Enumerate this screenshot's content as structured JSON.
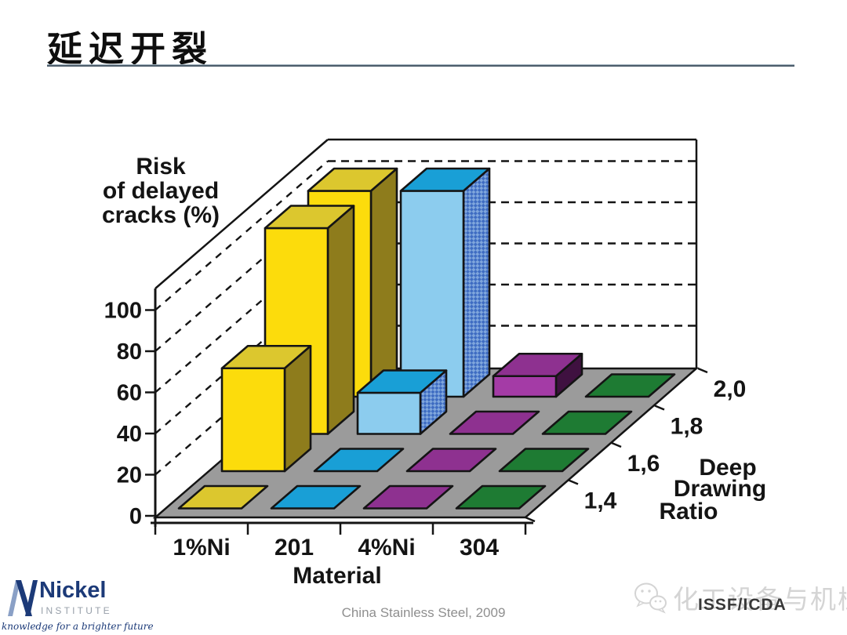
{
  "slide": {
    "title": "延迟开裂",
    "accent_line_color": "#4d5d6b",
    "footer_credit": "China Stainless Steel, 2009",
    "footer_org": "ISSF/ICDA",
    "watermark": "化工设备与机械"
  },
  "logo": {
    "name": "Nickel",
    "subname": "INSTITUTE",
    "tagline": "knowledge for a brighter future",
    "navy": "#1c3a78"
  },
  "chart_data": {
    "type": "bar",
    "projection": "3d-oblique",
    "title_lines": [
      "Risk",
      "of delayed",
      "cracks (%)"
    ],
    "x_axis": {
      "label": "Material",
      "categories": [
        "1%Ni",
        "201",
        "4%Ni",
        "304"
      ]
    },
    "depth_axis": {
      "label_lines": [
        "Deep",
        "Drawing",
        "Ratio"
      ],
      "categories": [
        "1,4",
        "1,6",
        "1,8",
        "2,0"
      ]
    },
    "y_axis": {
      "min": 0,
      "max": 100,
      "ticks": [
        0,
        20,
        40,
        60,
        80,
        100
      ]
    },
    "grid": "dashed horizontal lines on back wall and left wall, no legend",
    "floor_color": "#9b9b9b",
    "series": [
      {
        "name": "1%Ni",
        "values": [
          0,
          50,
          100,
          100
        ],
        "color_front": "#FCDC0C",
        "color_top": "#DCC72E",
        "color_side": "#8E7C1C"
      },
      {
        "name": "201",
        "values": [
          0,
          0,
          20,
          100
        ],
        "color_front": "#8CCCEE",
        "color_top": "#199FD6",
        "color_side": "#3E6CC2",
        "side_hatch": "#7FA6DC"
      },
      {
        "name": "4%Ni",
        "values": [
          0,
          0,
          0,
          10
        ],
        "color_front": "#A43BA6",
        "color_top": "#8E3190",
        "color_side": "#3F1140"
      },
      {
        "name": "304",
        "values": [
          0,
          0,
          0,
          0
        ],
        "color_front": "#2F9048",
        "color_top": "#1E7B33",
        "color_side": "#0F4D1F"
      }
    ]
  }
}
